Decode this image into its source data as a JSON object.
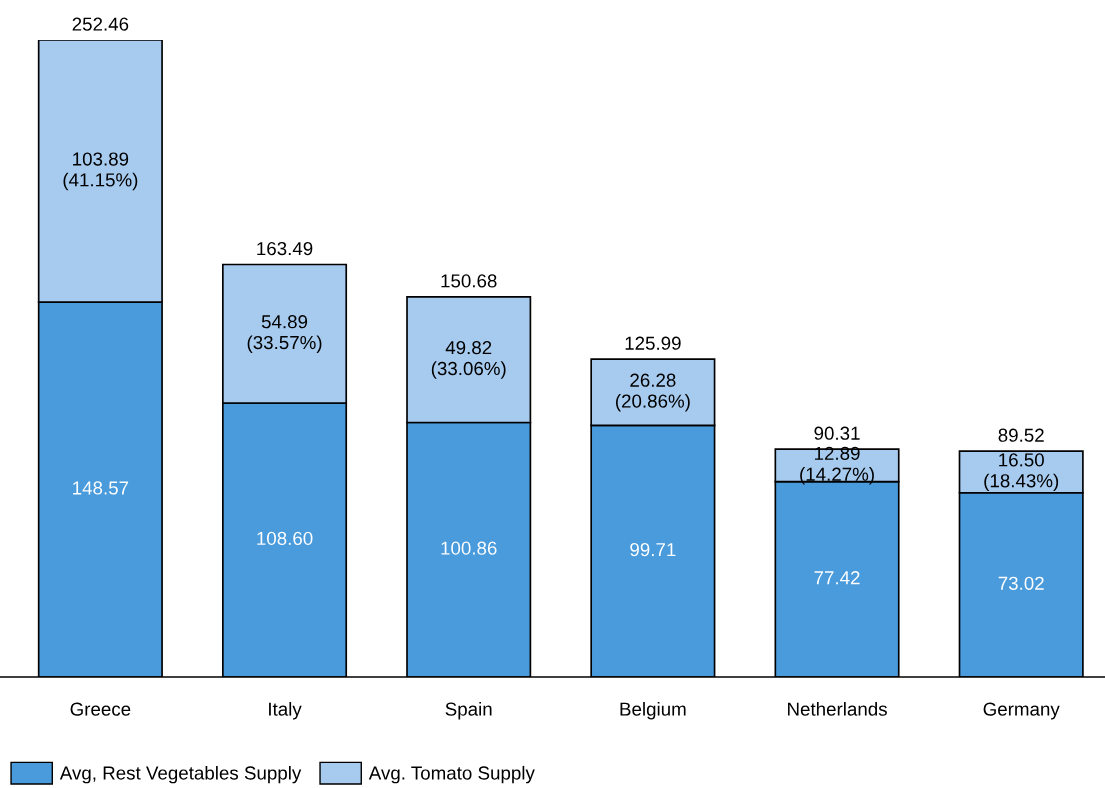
{
  "chart_data": {
    "type": "bar",
    "stacked": true,
    "categories": [
      "Greece",
      "Italy",
      "Spain",
      "Belgium",
      "Netherlands",
      "Germany"
    ],
    "series": [
      {
        "name": "Avg, Rest Vegetables Supply",
        "color": "#4a9bdc",
        "values": [
          148.57,
          108.6,
          100.86,
          99.71,
          77.42,
          73.02
        ],
        "value_labels": [
          "148.57",
          "108.60",
          "100.86",
          "99.71",
          "77.42",
          "73.02"
        ]
      },
      {
        "name": "Avg. Tomato Supply",
        "color": "#a6cbef",
        "values": [
          103.89,
          54.89,
          49.82,
          26.28,
          12.89,
          16.5
        ],
        "value_labels": [
          "103.89\n(41.15%)",
          "54.89\n(33.57%)",
          "49.82\n(33.06%)",
          "26.28\n(20.86%)",
          "12.89\n(14.27%)",
          "16.50\n(18.43%)"
        ]
      }
    ],
    "totals": [
      "252.46",
      "163.49",
      "150.68",
      "125.99",
      "90.31",
      "89.52"
    ],
    "legend": "bottom left",
    "grid": false
  }
}
